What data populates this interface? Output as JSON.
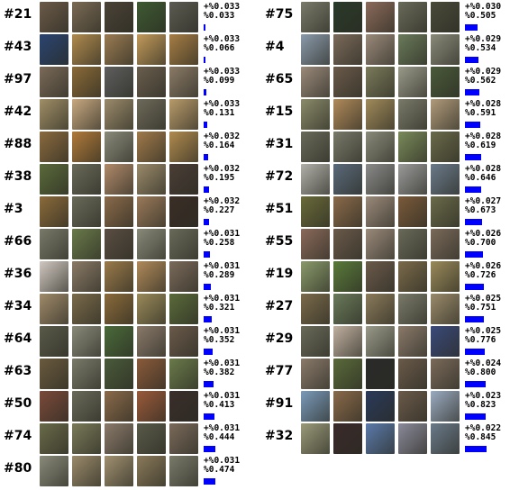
{
  "colors": {
    "bar": "#0000ff"
  },
  "left_rows": [
    {
      "rank": "#21",
      "inc": "+%0.033",
      "cum": "%0.033",
      "frac": 0.033,
      "thumbs": [
        "#6b5a48",
        "#7a6a54",
        "#4a4236",
        "#3e5a32",
        "#5b5b52"
      ]
    },
    {
      "rank": "#43",
      "inc": "+%0.033",
      "cum": "%0.066",
      "frac": 0.066,
      "thumbs": [
        "#2a4470",
        "#b08a4e",
        "#9a7b52",
        "#c29a5a",
        "#a67d44"
      ]
    },
    {
      "rank": "#97",
      "inc": "+%0.033",
      "cum": "%0.099",
      "frac": 0.099,
      "thumbs": [
        "#7a6a58",
        "#8a6a38",
        "#5e5e5e",
        "#6a5e4e",
        "#8a7a66"
      ]
    },
    {
      "rank": "#42",
      "inc": "+%0.033",
      "cum": "%0.131",
      "frac": 0.131,
      "thumbs": [
        "#a08e66",
        "#c8a880",
        "#9a8a6a",
        "#6e6a5a",
        "#b89a6a"
      ]
    },
    {
      "rank": "#88",
      "inc": "+%0.032",
      "cum": "%0.164",
      "frac": 0.164,
      "thumbs": [
        "#8a6a3e",
        "#b07a3a",
        "#8a8a7a",
        "#a07a4a",
        "#b08a4e"
      ]
    },
    {
      "rank": "#38",
      "inc": "+%0.032",
      "cum": "%0.195",
      "frac": 0.195,
      "thumbs": [
        "#5a6a3a",
        "#6a6a5a",
        "#b08a6a",
        "#9a8a6a",
        "#4a3e36"
      ]
    },
    {
      "rank": "#3",
      "inc": "+%0.032",
      "cum": "%0.227",
      "frac": 0.227,
      "thumbs": [
        "#8a6a3a",
        "#6a6a5a",
        "#8a6a4a",
        "#9a7a5a",
        "#3a2e26"
      ]
    },
    {
      "rank": "#66",
      "inc": "+%0.031",
      "cum": "%0.258",
      "frac": 0.258,
      "thumbs": [
        "#7a7a6a",
        "#6a7a4a",
        "#5a4e42",
        "#8a8a7a",
        "#6a6a5a"
      ]
    },
    {
      "rank": "#36",
      "inc": "+%0.031",
      "cum": "%0.289",
      "frac": 0.289,
      "thumbs": [
        "#d0c8c0",
        "#8a7a66",
        "#9a7a4a",
        "#b08a5a",
        "#7a6a5a"
      ]
    },
    {
      "rank": "#34",
      "inc": "+%0.031",
      "cum": "%0.321",
      "frac": 0.321,
      "thumbs": [
        "#a08a6a",
        "#7a6a4a",
        "#8a6a3a",
        "#9a8a5a",
        "#5a6a3a"
      ]
    },
    {
      "rank": "#64",
      "inc": "+%0.031",
      "cum": "%0.352",
      "frac": 0.352,
      "thumbs": [
        "#5a5a4a",
        "#8a8a7a",
        "#4a6a3a",
        "#8a7a6a",
        "#6a5a4a"
      ]
    },
    {
      "rank": "#63",
      "inc": "+%0.031",
      "cum": "%0.382",
      "frac": 0.382,
      "thumbs": [
        "#6a5a3e",
        "#7a7a6a",
        "#4a5a3a",
        "#8a5a3a",
        "#6a7a4a"
      ]
    },
    {
      "rank": "#50",
      "inc": "+%0.031",
      "cum": "%0.413",
      "frac": 0.413,
      "thumbs": [
        "#7a4a3a",
        "#6a6a5a",
        "#8a6a4a",
        "#9a5a3a",
        "#3a2e2a"
      ]
    },
    {
      "rank": "#74",
      "inc": "+%0.031",
      "cum": "%0.444",
      "frac": 0.444,
      "thumbs": [
        "#6a6a4a",
        "#7a7a5a",
        "#8a7a6a",
        "#5a5a4a",
        "#7a6a5a"
      ]
    },
    {
      "rank": "#80",
      "inc": "+%0.031",
      "cum": "%0.474",
      "frac": 0.474,
      "thumbs": [
        "#8a8a7a",
        "#9a8a6a",
        "#a09070",
        "#8a7a5a",
        "#7a7a6a"
      ]
    }
  ],
  "right_rows": [
    {
      "rank": "#75",
      "inc": "+%0.030",
      "cum": "%0.505",
      "frac": 0.505,
      "thumbs": [
        "#7a7a6a",
        "#2a3a2a",
        "#8a6a5a",
        "#6a6a5a",
        "#4a4a3a"
      ]
    },
    {
      "rank": "#4",
      "inc": "+%0.029",
      "cum": "%0.534",
      "frac": 0.534,
      "thumbs": [
        "#8a9aaa",
        "#7a6a5a",
        "#9a8a7a",
        "#6a7a5a",
        "#8a8a7a"
      ]
    },
    {
      "rank": "#65",
      "inc": "+%0.029",
      "cum": "%0.562",
      "frac": 0.562,
      "thumbs": [
        "#9a8a7a",
        "#6a5a4a",
        "#7a7a5a",
        "#9a9a8a",
        "#4a5a3a"
      ]
    },
    {
      "rank": "#15",
      "inc": "+%0.028",
      "cum": "%0.591",
      "frac": 0.591,
      "thumbs": [
        "#8a8a6a",
        "#b08a5a",
        "#a08a5a",
        "#7a7a6a",
        "#b09a7a"
      ]
    },
    {
      "rank": "#31",
      "inc": "+%0.028",
      "cum": "%0.619",
      "frac": 0.619,
      "thumbs": [
        "#6a6a5a",
        "#7a7a6a",
        "#8a8a7a",
        "#7a8a5a",
        "#6a6a4a"
      ]
    },
    {
      "rank": "#72",
      "inc": "+%0.028",
      "cum": "%0.646",
      "frac": 0.646,
      "thumbs": [
        "#b0b0a8",
        "#5a6a7a",
        "#8a8a8a",
        "#9a9a9a",
        "#6a7a8a"
      ]
    },
    {
      "rank": "#51",
      "inc": "+%0.027",
      "cum": "%0.673",
      "frac": 0.673,
      "thumbs": [
        "#6a6a3a",
        "#8a6a4a",
        "#9a8a7a",
        "#7a5a3a",
        "#6a6a4a"
      ]
    },
    {
      "rank": "#55",
      "inc": "+%0.026",
      "cum": "%0.700",
      "frac": 0.7,
      "thumbs": [
        "#8a6a5a",
        "#6a5a4a",
        "#9a8a7a",
        "#6a6a5a",
        "#7a6a5a"
      ]
    },
    {
      "rank": "#19",
      "inc": "+%0.026",
      "cum": "%0.726",
      "frac": 0.726,
      "thumbs": [
        "#8a9a6a",
        "#5a7a3a",
        "#6a5a4a",
        "#7a6a4a",
        "#9a8a5a"
      ]
    },
    {
      "rank": "#27",
      "inc": "+%0.025",
      "cum": "%0.751",
      "frac": 0.751,
      "thumbs": [
        "#7a6a4a",
        "#6a7a5a",
        "#8a7a5a",
        "#7a7a6a",
        "#9a8a6a"
      ]
    },
    {
      "rank": "#29",
      "inc": "+%0.025",
      "cum": "%0.776",
      "frac": 0.776,
      "thumbs": [
        "#6a6a5a",
        "#c0b0a0",
        "#9a9a8a",
        "#8a7a6a",
        "#3a4a7a"
      ]
    },
    {
      "rank": "#77",
      "inc": "+%0.024",
      "cum": "%0.800",
      "frac": 0.8,
      "thumbs": [
        "#8a7a6a",
        "#5a6a3a",
        "#2a2a2a",
        "#6a5a4a",
        "#7a6a5a"
      ]
    },
    {
      "rank": "#91",
      "inc": "+%0.023",
      "cum": "%0.823",
      "frac": 0.823,
      "thumbs": [
        "#7a9aba",
        "#8a6a4a",
        "#2a3a5a",
        "#6a5a4a",
        "#9aaac0"
      ]
    },
    {
      "rank": "#32",
      "inc": "+%0.022",
      "cum": "%0.845",
      "frac": 0.845,
      "thumbs": [
        "#9a9a7a",
        "#3a2a2a",
        "#5a7aaa",
        "#8a8a9a",
        "#6a7a8a"
      ]
    }
  ]
}
